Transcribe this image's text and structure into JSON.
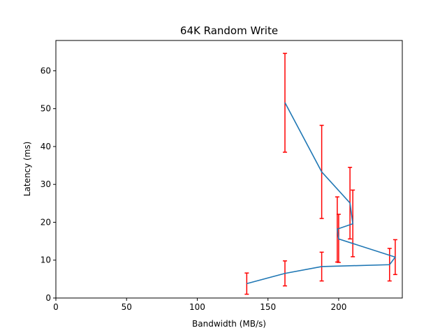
{
  "chart_data": {
    "type": "line",
    "title": "64K  Random Write",
    "xlabel": "Bandwidth (MB/s)",
    "ylabel": "Latency (ms)",
    "xlim": [
      0,
      245
    ],
    "ylim": [
      0,
      68
    ],
    "xticks": [
      0,
      50,
      100,
      150,
      200
    ],
    "yticks": [
      0,
      10,
      20,
      30,
      40,
      50,
      60
    ],
    "grid": false,
    "line_color": "#1f77b4",
    "error_color": "#ff0000",
    "series": [
      {
        "points": [
          {
            "x": 135,
            "y": 3.8,
            "err_low": 1.0,
            "err_high": 6.6
          },
          {
            "x": 162,
            "y": 6.5,
            "err_low": 3.2,
            "err_high": 9.8
          },
          {
            "x": 188,
            "y": 8.3,
            "err_low": 4.5,
            "err_high": 12.1
          },
          {
            "x": 236,
            "y": 8.8,
            "err_low": 4.5,
            "err_high": 13.1
          },
          {
            "x": 240,
            "y": 10.8,
            "err_low": 6.2,
            "err_high": 15.4
          },
          {
            "x": 200,
            "y": 15.6,
            "err_low": 9.4,
            "err_high": 22.1
          },
          {
            "x": 199,
            "y": 18.2,
            "err_low": 9.5,
            "err_high": 26.7
          },
          {
            "x": 210,
            "y": 19.6,
            "err_low": 10.9,
            "err_high": 28.5
          },
          {
            "x": 208,
            "y": 25.1,
            "err_low": 15.6,
            "err_high": 34.5
          },
          {
            "x": 188,
            "y": 33.3,
            "err_low": 21.0,
            "err_high": 45.6
          },
          {
            "x": 162,
            "y": 51.6,
            "err_low": 38.5,
            "err_high": 64.6
          }
        ]
      }
    ]
  }
}
